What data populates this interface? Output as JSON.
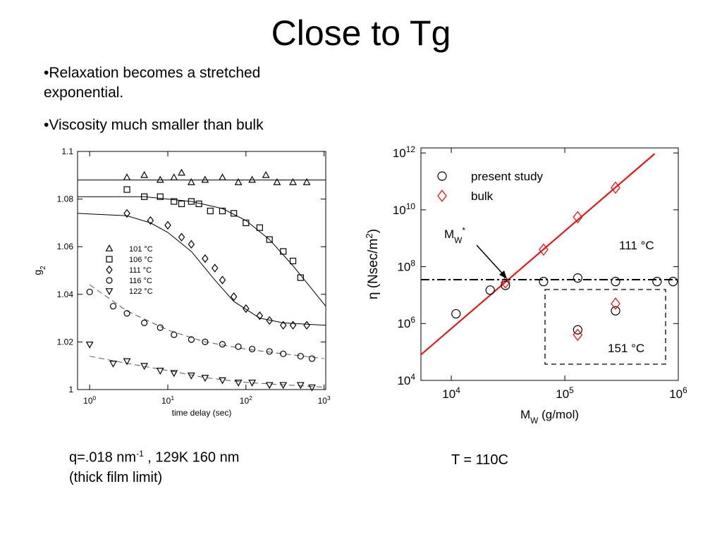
{
  "title": "Close to Tg",
  "bullets": [
    "•Relaxation becomes a stretched exponential.",
    "•Viscosity much smaller than bulk"
  ],
  "caption_left": {
    "text": "q=.018 nm",
    "sup": "-1",
    "rest": " , 129K 160 nm",
    "line2": "(thick film limit)"
  },
  "caption_right": "T = 110C",
  "chart_data": [
    {
      "type": "scatter",
      "xscale": "log",
      "yscale": "linear",
      "xlim": [
        0.7,
        1050
      ],
      "ylim": [
        1,
        1.1
      ],
      "xticks": [
        {
          "value": 1,
          "label": "10",
          "exponent": "0"
        },
        {
          "value": 10,
          "label": "10",
          "exponent": "1"
        },
        {
          "value": 100,
          "label": "10",
          "exponent": "2"
        },
        {
          "value": 1000,
          "label": "10",
          "exponent": "3"
        }
      ],
      "yticks": [
        1,
        1.02,
        1.04,
        1.06,
        1.08,
        1.1
      ],
      "xlabel": "time delay (sec)",
      "ylabel": {
        "text": "g",
        "sub": "2"
      },
      "series": [
        {
          "name": "101 °C",
          "marker": "triangle-up",
          "color": "#000000",
          "x": [
            3,
            5,
            8,
            12,
            15,
            20,
            30,
            50,
            80,
            120,
            180,
            250,
            400,
            600
          ],
          "values": [
            1.089,
            1.09,
            1.088,
            1.089,
            1.091,
            1.087,
            1.088,
            1.089,
            1.087,
            1.088,
            1.09,
            1.087,
            1.087,
            1.087
          ]
        },
        {
          "name": "106 °C",
          "marker": "square",
          "color": "#000000",
          "x": [
            3,
            5,
            8,
            12,
            15,
            20,
            25,
            35,
            50,
            70,
            100,
            150,
            200,
            300,
            400,
            500
          ],
          "values": [
            1.084,
            1.081,
            1.081,
            1.079,
            1.078,
            1.079,
            1.078,
            1.075,
            1.075,
            1.074,
            1.07,
            1.068,
            1.063,
            1.058,
            1.054,
            1.047
          ]
        },
        {
          "name": "111 °C",
          "marker": "diamond",
          "color": "#000000",
          "x": [
            3,
            6,
            10,
            15,
            20,
            30,
            40,
            50,
            70,
            100,
            150,
            200,
            300,
            400,
            600
          ],
          "values": [
            1.074,
            1.071,
            1.069,
            1.064,
            1.061,
            1.055,
            1.051,
            1.046,
            1.039,
            1.034,
            1.031,
            1.029,
            1.027,
            1.027,
            1.027
          ]
        },
        {
          "name": "116 °C",
          "marker": "circle",
          "color": "#000000",
          "x": [
            1,
            2,
            3,
            5,
            8,
            12,
            20,
            30,
            50,
            80,
            120,
            200,
            300,
            500,
            700
          ],
          "values": [
            1.041,
            1.035,
            1.032,
            1.028,
            1.026,
            1.023,
            1.021,
            1.02,
            1.019,
            1.018,
            1.017,
            1.016,
            1.015,
            1.014,
            1.013
          ]
        },
        {
          "name": "122 °C",
          "marker": "triangle-down",
          "color": "#000000",
          "x": [
            1,
            2,
            3,
            5,
            8,
            12,
            20,
            30,
            50,
            80,
            120,
            200,
            300,
            500,
            700
          ],
          "values": [
            1.019,
            1.011,
            1.012,
            1.01,
            1.008,
            1.007,
            1.006,
            1.005,
            1.004,
            1.003,
            1.003,
            1.002,
            1.002,
            1.002,
            1.001
          ]
        }
      ],
      "fits": [
        {
          "x": [
            0.7,
            1050
          ],
          "values": [
            1.088,
            1.088
          ],
          "color": "#000000",
          "dash": "solid"
        },
        {
          "x": [
            0.7,
            5,
            20,
            50,
            100,
            200,
            400,
            1050
          ],
          "values": [
            1.081,
            1.081,
            1.079,
            1.076,
            1.071,
            1.063,
            1.052,
            1.035
          ],
          "color": "#000000",
          "dash": "solid"
        },
        {
          "x": [
            0.7,
            3,
            6,
            10,
            20,
            40,
            70,
            150,
            300,
            1050
          ],
          "values": [
            1.074,
            1.073,
            1.07,
            1.066,
            1.058,
            1.046,
            1.037,
            1.03,
            1.028,
            1.027
          ],
          "color": "#000000",
          "dash": "solid"
        },
        {
          "x": [
            1,
            3,
            10,
            30,
            100,
            300,
            1000
          ],
          "values": [
            1.044,
            1.033,
            1.025,
            1.02,
            1.017,
            1.015,
            1.013
          ],
          "color": "#555555",
          "dash": "dashed"
        },
        {
          "x": [
            1,
            3,
            10,
            30,
            100,
            300,
            1000
          ],
          "values": [
            1.014,
            1.011,
            1.008,
            1.005,
            1.003,
            1.002,
            1.001
          ],
          "color": "#555555",
          "dash": "dashed"
        }
      ]
    },
    {
      "type": "scatter",
      "xscale": "log",
      "yscale": "log",
      "xlim": [
        5400,
        1000000
      ],
      "ylim": [
        10000,
        1500000000000
      ],
      "xticks": [
        {
          "value": 10000,
          "label": "10",
          "exponent": "4"
        },
        {
          "value": 100000,
          "label": "10",
          "exponent": "5"
        },
        {
          "value": 1000000,
          "label": "10",
          "exponent": "6"
        }
      ],
      "yticks": [
        {
          "value": 10000,
          "label": "10",
          "exponent": "4"
        },
        {
          "value": 1000000,
          "label": "10",
          "exponent": "6"
        },
        {
          "value": 100000000,
          "label": "10",
          "exponent": "8"
        },
        {
          "value": 10000000000,
          "label": "10",
          "exponent": "10"
        },
        {
          "value": 1000000000000,
          "label": "10",
          "exponent": "12"
        }
      ],
      "xlabel": {
        "text": "M",
        "sub": "W",
        "rest": " (g/mol)"
      },
      "ylabel": {
        "text": "η (Nsec/m",
        "sup": "2",
        "rest": ")"
      },
      "series": [
        {
          "name": "present study",
          "marker": "circle",
          "color": "#000000",
          "x": [
            11000,
            22000,
            30000,
            65000,
            130000,
            280000,
            650000,
            900000,
            130000,
            280000
          ],
          "values": [
            2200000,
            15000000,
            22000000,
            30000000,
            40000000,
            30000000,
            30000000,
            30000000,
            600000,
            2800000
          ]
        },
        {
          "name": "bulk",
          "marker": "diamond",
          "color": "#ff0000",
          "x": [
            30000,
            65000,
            130000,
            280000,
            130000,
            280000
          ],
          "values": [
            28000000,
            400000000,
            5500000000,
            60000000000,
            400000,
            5000000
          ]
        }
      ],
      "fits": [
        {
          "x": [
            5400,
            620000
          ],
          "values": [
            80000,
            940000000000
          ],
          "color": "#ff0000",
          "dash": "solid"
        },
        {
          "x": [
            5400,
            1000000
          ],
          "values": [
            35000000,
            35000000
          ],
          "color": "#000000",
          "dash": "dashdot"
        }
      ],
      "annotations": [
        {
          "text": "M",
          "sub": "W",
          "sup": "*"
        },
        {
          "text": "111 °C"
        },
        {
          "text": "151 °C"
        }
      ]
    }
  ]
}
